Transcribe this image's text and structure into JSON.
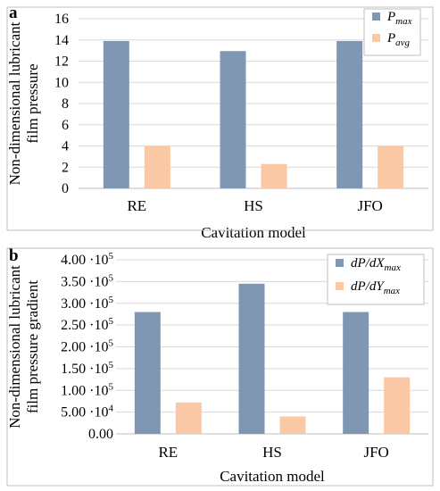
{
  "chart_data": [
    {
      "panel_label": "a",
      "type": "bar",
      "categories": [
        "RE",
        "HS",
        "JFO"
      ],
      "xlabel": "Cavitation model",
      "ylabel_lines": [
        "Non-dimensional lubricant",
        "film pressure"
      ],
      "ylim": [
        0,
        16
      ],
      "yticks": [
        "0",
        "2",
        "4",
        "6",
        "8",
        "10",
        "12",
        "14",
        "16"
      ],
      "grid": true,
      "legend_position": "top-right",
      "series": [
        {
          "name_main": "P",
          "name_sub": "max",
          "color": "#7f97b2",
          "values": [
            13.9,
            12.95,
            13.9
          ]
        },
        {
          "name_main": "P",
          "name_sub": "avg",
          "color": "#fbc8a5",
          "values": [
            4.0,
            2.3,
            4.0
          ]
        }
      ]
    },
    {
      "panel_label": "b",
      "type": "bar",
      "categories": [
        "RE",
        "HS",
        "JFO"
      ],
      "xlabel": "Cavitation model",
      "ylabel_lines": [
        "Non-dimensional lubricant",
        "film pressure gradient"
      ],
      "ylim": [
        0,
        400000
      ],
      "yticks": [
        {
          "mant": "0.00",
          "exp": ""
        },
        {
          "mant": "5.00 ·10",
          "exp": "4"
        },
        {
          "mant": "1.00 ·10",
          "exp": "5"
        },
        {
          "mant": "1.50 ·10",
          "exp": "5"
        },
        {
          "mant": "2.00 ·10",
          "exp": "5"
        },
        {
          "mant": "2.50 ·10",
          "exp": "5"
        },
        {
          "mant": "3.00 ·10",
          "exp": "5"
        },
        {
          "mant": "3.50 ·10",
          "exp": "5"
        },
        {
          "mant": "4.00 ·10",
          "exp": "5"
        }
      ],
      "grid": true,
      "legend_position": "top-right",
      "series": [
        {
          "name_main": "dP/dX",
          "name_sub": "max",
          "color": "#7f97b2",
          "values": [
            280000,
            345000,
            280000
          ]
        },
        {
          "name_main": "dP/dY",
          "name_sub": "max",
          "color": "#fbc8a5",
          "values": [
            72000,
            40000,
            130000
          ]
        }
      ]
    }
  ]
}
